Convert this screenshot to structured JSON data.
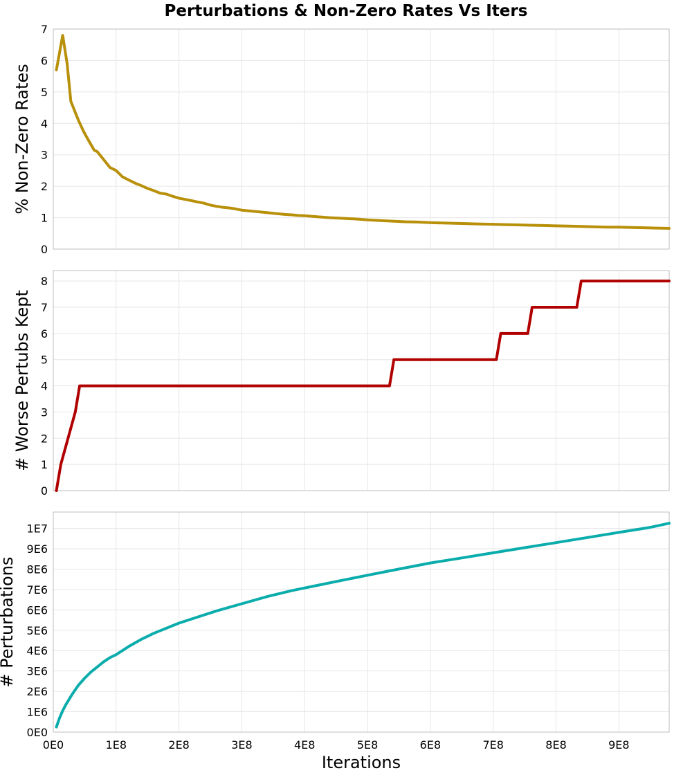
{
  "chart_data": [
    {
      "type": "line",
      "title": "Perturbations & Non-Zero Rates Vs Iters",
      "ylabel": "% Non-Zero Rates",
      "xlim": [
        0,
        980000000
      ],
      "ylim": [
        0,
        7
      ],
      "yticks": [
        0,
        1,
        2,
        3,
        4,
        5,
        6,
        7
      ],
      "ytick_labels": [
        "0",
        "1",
        "2",
        "3",
        "4",
        "5",
        "6",
        "7"
      ],
      "grid": true,
      "color": "#b8900a",
      "x": [
        5000000,
        15000000,
        22000000,
        28000000,
        40000000,
        48000000,
        55000000,
        65000000,
        70000000,
        80000000,
        90000000,
        100000000,
        110000000,
        120000000,
        130000000,
        140000000,
        150000000,
        160000000,
        170000000,
        180000000,
        190000000,
        200000000,
        210000000,
        220000000,
        230000000,
        240000000,
        250000000,
        260000000,
        270000000,
        280000000,
        290000000,
        300000000,
        310000000,
        320000000,
        330000000,
        340000000,
        350000000,
        360000000,
        370000000,
        380000000,
        390000000,
        400000000,
        420000000,
        440000000,
        460000000,
        480000000,
        500000000,
        520000000,
        540000000,
        560000000,
        580000000,
        600000000,
        620000000,
        640000000,
        660000000,
        680000000,
        700000000,
        720000000,
        740000000,
        760000000,
        780000000,
        800000000,
        820000000,
        840000000,
        860000000,
        880000000,
        900000000,
        920000000,
        940000000,
        960000000,
        980000000
      ],
      "y": [
        5.7,
        6.8,
        5.9,
        4.7,
        4.1,
        3.75,
        3.5,
        3.15,
        3.1,
        2.85,
        2.6,
        2.5,
        2.3,
        2.2,
        2.1,
        2.02,
        1.93,
        1.86,
        1.78,
        1.75,
        1.68,
        1.62,
        1.58,
        1.54,
        1.5,
        1.46,
        1.4,
        1.36,
        1.33,
        1.31,
        1.28,
        1.24,
        1.22,
        1.2,
        1.18,
        1.16,
        1.14,
        1.12,
        1.1,
        1.09,
        1.07,
        1.06,
        1.03,
        1.0,
        0.98,
        0.96,
        0.93,
        0.91,
        0.89,
        0.87,
        0.86,
        0.84,
        0.83,
        0.82,
        0.81,
        0.8,
        0.79,
        0.78,
        0.77,
        0.76,
        0.75,
        0.74,
        0.73,
        0.72,
        0.71,
        0.7,
        0.7,
        0.69,
        0.68,
        0.67,
        0.66
      ]
    },
    {
      "type": "line",
      "ylabel": "# Worse Pertubs Kept",
      "xlim": [
        0,
        980000000
      ],
      "ylim": [
        0,
        8.4
      ],
      "yticks": [
        0,
        1,
        2,
        3,
        4,
        5,
        6,
        7,
        8
      ],
      "ytick_labels": [
        "0",
        "1",
        "2",
        "3",
        "4",
        "5",
        "6",
        "7",
        "8"
      ],
      "grid": true,
      "color": "#b00000",
      "x": [
        5000000,
        12000000,
        35000000,
        42000000,
        535000000,
        542000000,
        705000000,
        712000000,
        755000000,
        762000000,
        833000000,
        840000000,
        980000000
      ],
      "y": [
        0,
        1,
        3,
        4,
        4,
        5,
        5,
        6,
        6,
        7,
        7,
        8,
        8
      ]
    },
    {
      "type": "line",
      "ylabel": "# Perturbations",
      "xlabel": "Iterations",
      "xlim": [
        0,
        980000000
      ],
      "ylim": [
        0,
        10800000
      ],
      "yticks": [
        0,
        1000000,
        2000000,
        3000000,
        4000000,
        5000000,
        6000000,
        7000000,
        8000000,
        9000000,
        10000000
      ],
      "ytick_labels": [
        "0E0",
        "1E6",
        "2E6",
        "3E6",
        "4E6",
        "5E6",
        "6E6",
        "7E6",
        "8E6",
        "9E6",
        "1E7"
      ],
      "xticks": [
        0,
        100000000,
        200000000,
        300000000,
        400000000,
        500000000,
        600000000,
        700000000,
        800000000,
        900000000
      ],
      "xtick_labels": [
        "0E0",
        "1E8",
        "2E8",
        "3E8",
        "4E8",
        "5E8",
        "6E8",
        "7E8",
        "8E8",
        "9E8"
      ],
      "grid": true,
      "color": "#0aacac",
      "x": [
        5000000,
        10000000,
        15000000,
        20000000,
        25000000,
        30000000,
        40000000,
        50000000,
        60000000,
        70000000,
        80000000,
        90000000,
        100000000,
        120000000,
        140000000,
        160000000,
        180000000,
        200000000,
        230000000,
        260000000,
        300000000,
        340000000,
        380000000,
        420000000,
        460000000,
        500000000,
        550000000,
        600000000,
        650000000,
        700000000,
        750000000,
        800000000,
        850000000,
        900000000,
        950000000,
        980000000
      ],
      "y": [
        250000,
        700000,
        1050000,
        1350000,
        1600000,
        1850000,
        2300000,
        2650000,
        2950000,
        3200000,
        3450000,
        3650000,
        3800000,
        4200000,
        4550000,
        4850000,
        5100000,
        5350000,
        5650000,
        5950000,
        6300000,
        6650000,
        6950000,
        7200000,
        7450000,
        7700000,
        8000000,
        8300000,
        8550000,
        8800000,
        9050000,
        9300000,
        9550000,
        9800000,
        10050000,
        10250000
      ]
    }
  ]
}
